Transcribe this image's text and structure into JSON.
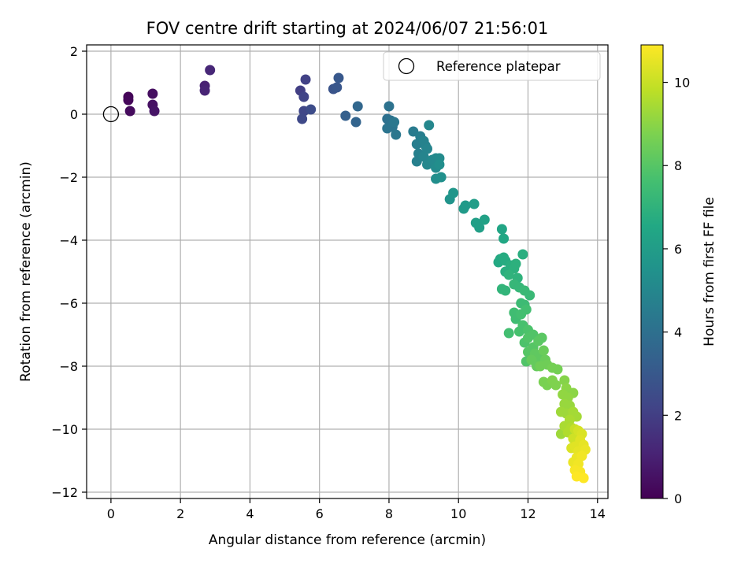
{
  "chart_data": {
    "type": "scatter",
    "title": "FOV centre drift starting at 2024/06/07 21:56:01",
    "xlabel": "Angular distance from reference (arcmin)",
    "ylabel": "Rotation from reference (arcmin)",
    "xlim": [
      -0.7,
      14.3
    ],
    "ylim": [
      -12.2,
      2.2
    ],
    "xticks": [
      0,
      2,
      4,
      6,
      8,
      10,
      12,
      14
    ],
    "yticks": [
      -12,
      -10,
      -8,
      -6,
      -4,
      -2,
      0,
      2
    ],
    "grid": true,
    "legend": {
      "position": "top-right",
      "entries": [
        {
          "label": "Reference platepar",
          "marker": "open-circle"
        }
      ]
    },
    "reference_point": {
      "x": 0,
      "y": 0
    },
    "colorbar": {
      "label": "Hours from first FF file",
      "colormap": "viridis",
      "range": [
        0,
        10.9
      ],
      "ticks": [
        0,
        2,
        4,
        6,
        8,
        10
      ]
    },
    "points": [
      {
        "x": 0.5,
        "y": 0.55,
        "t": 0.1
      },
      {
        "x": 0.5,
        "y": 0.45,
        "t": 0.2
      },
      {
        "x": 0.55,
        "y": 0.1,
        "t": 0.3
      },
      {
        "x": 1.2,
        "y": 0.65,
        "t": 0.4
      },
      {
        "x": 1.2,
        "y": 0.3,
        "t": 0.5
      },
      {
        "x": 1.25,
        "y": 0.1,
        "t": 0.6
      },
      {
        "x": 2.7,
        "y": 0.9,
        "t": 1.0
      },
      {
        "x": 2.7,
        "y": 0.75,
        "t": 1.1
      },
      {
        "x": 2.85,
        "y": 1.4,
        "t": 1.2
      },
      {
        "x": 5.45,
        "y": 0.75,
        "t": 2.0
      },
      {
        "x": 5.6,
        "y": 1.1,
        "t": 2.1
      },
      {
        "x": 5.55,
        "y": 0.55,
        "t": 2.2
      },
      {
        "x": 5.55,
        "y": 0.1,
        "t": 2.3
      },
      {
        "x": 5.5,
        "y": -0.15,
        "t": 2.4
      },
      {
        "x": 5.75,
        "y": 0.15,
        "t": 2.5
      },
      {
        "x": 6.4,
        "y": 0.8,
        "t": 2.8
      },
      {
        "x": 6.5,
        "y": 0.85,
        "t": 2.9
      },
      {
        "x": 6.55,
        "y": 1.15,
        "t": 3.0
      },
      {
        "x": 6.75,
        "y": -0.05,
        "t": 3.3
      },
      {
        "x": 7.05,
        "y": -0.25,
        "t": 3.5
      },
      {
        "x": 7.1,
        "y": 0.25,
        "t": 3.6
      },
      {
        "x": 7.95,
        "y": -0.15,
        "t": 4.0
      },
      {
        "x": 8.0,
        "y": 0.25,
        "t": 4.1
      },
      {
        "x": 8.05,
        "y": -0.2,
        "t": 4.1
      },
      {
        "x": 7.95,
        "y": -0.45,
        "t": 4.2
      },
      {
        "x": 8.1,
        "y": -0.4,
        "t": 4.2
      },
      {
        "x": 8.15,
        "y": -0.25,
        "t": 4.3
      },
      {
        "x": 8.2,
        "y": -0.65,
        "t": 4.3
      },
      {
        "x": 8.7,
        "y": -0.55,
        "t": 4.5
      },
      {
        "x": 8.8,
        "y": -0.95,
        "t": 4.6
      },
      {
        "x": 8.9,
        "y": -0.7,
        "t": 4.6
      },
      {
        "x": 8.85,
        "y": -1.25,
        "t": 4.7
      },
      {
        "x": 8.8,
        "y": -1.5,
        "t": 4.7
      },
      {
        "x": 9.0,
        "y": -0.85,
        "t": 4.8
      },
      {
        "x": 9.05,
        "y": -1.0,
        "t": 4.8
      },
      {
        "x": 9.0,
        "y": -1.35,
        "t": 4.9
      },
      {
        "x": 9.1,
        "y": -1.1,
        "t": 4.9
      },
      {
        "x": 9.15,
        "y": -0.35,
        "t": 5.0
      },
      {
        "x": 9.1,
        "y": -1.6,
        "t": 5.0
      },
      {
        "x": 9.25,
        "y": -1.45,
        "t": 5.1
      },
      {
        "x": 9.35,
        "y": -1.4,
        "t": 5.1
      },
      {
        "x": 9.45,
        "y": -1.4,
        "t": 5.2
      },
      {
        "x": 9.35,
        "y": -1.7,
        "t": 5.2
      },
      {
        "x": 9.45,
        "y": -1.6,
        "t": 5.3
      },
      {
        "x": 9.35,
        "y": -2.05,
        "t": 5.3
      },
      {
        "x": 9.5,
        "y": -2.0,
        "t": 5.4
      },
      {
        "x": 9.75,
        "y": -2.7,
        "t": 5.6
      },
      {
        "x": 9.85,
        "y": -2.5,
        "t": 5.7
      },
      {
        "x": 10.15,
        "y": -3.0,
        "t": 5.9
      },
      {
        "x": 10.2,
        "y": -2.9,
        "t": 5.9
      },
      {
        "x": 10.45,
        "y": -2.85,
        "t": 6.0
      },
      {
        "x": 10.5,
        "y": -3.45,
        "t": 6.1
      },
      {
        "x": 10.6,
        "y": -3.6,
        "t": 6.1
      },
      {
        "x": 10.75,
        "y": -3.35,
        "t": 6.2
      },
      {
        "x": 11.25,
        "y": -3.65,
        "t": 6.4
      },
      {
        "x": 11.3,
        "y": -3.95,
        "t": 6.5
      },
      {
        "x": 11.2,
        "y": -4.6,
        "t": 6.6
      },
      {
        "x": 11.15,
        "y": -4.7,
        "t": 6.6
      },
      {
        "x": 11.3,
        "y": -4.55,
        "t": 6.7
      },
      {
        "x": 11.35,
        "y": -4.65,
        "t": 6.7
      },
      {
        "x": 11.35,
        "y": -5.0,
        "t": 6.8
      },
      {
        "x": 11.5,
        "y": -4.8,
        "t": 6.8
      },
      {
        "x": 11.6,
        "y": -4.9,
        "t": 6.9
      },
      {
        "x": 11.65,
        "y": -4.75,
        "t": 6.9
      },
      {
        "x": 11.45,
        "y": -5.1,
        "t": 7.0
      },
      {
        "x": 11.85,
        "y": -4.45,
        "t": 6.8
      },
      {
        "x": 11.7,
        "y": -5.2,
        "t": 7.0
      },
      {
        "x": 11.25,
        "y": -5.55,
        "t": 7.1
      },
      {
        "x": 11.35,
        "y": -5.6,
        "t": 7.1
      },
      {
        "x": 11.6,
        "y": -5.4,
        "t": 7.2
      },
      {
        "x": 11.75,
        "y": -5.5,
        "t": 7.2
      },
      {
        "x": 11.9,
        "y": -5.6,
        "t": 7.3
      },
      {
        "x": 12.05,
        "y": -5.75,
        "t": 7.3
      },
      {
        "x": 11.8,
        "y": -6.0,
        "t": 7.4
      },
      {
        "x": 11.9,
        "y": -6.05,
        "t": 7.4
      },
      {
        "x": 11.6,
        "y": -6.3,
        "t": 7.5
      },
      {
        "x": 11.65,
        "y": -6.5,
        "t": 7.5
      },
      {
        "x": 11.8,
        "y": -6.35,
        "t": 7.6
      },
      {
        "x": 11.95,
        "y": -6.2,
        "t": 7.6
      },
      {
        "x": 11.45,
        "y": -6.95,
        "t": 7.6
      },
      {
        "x": 11.75,
        "y": -6.9,
        "t": 7.7
      },
      {
        "x": 11.85,
        "y": -6.7,
        "t": 7.7
      },
      {
        "x": 12.0,
        "y": -6.85,
        "t": 7.8
      },
      {
        "x": 11.9,
        "y": -7.25,
        "t": 7.8
      },
      {
        "x": 12.0,
        "y": -7.1,
        "t": 7.9
      },
      {
        "x": 12.15,
        "y": -7.0,
        "t": 7.9
      },
      {
        "x": 12.0,
        "y": -7.55,
        "t": 8.0
      },
      {
        "x": 12.15,
        "y": -7.4,
        "t": 8.0
      },
      {
        "x": 12.3,
        "y": -7.2,
        "t": 8.1
      },
      {
        "x": 12.4,
        "y": -7.1,
        "t": 8.1
      },
      {
        "x": 11.95,
        "y": -7.85,
        "t": 7.9
      },
      {
        "x": 12.2,
        "y": -7.6,
        "t": 8.2
      },
      {
        "x": 12.3,
        "y": -7.7,
        "t": 8.2
      },
      {
        "x": 12.1,
        "y": -7.8,
        "t": 8.3
      },
      {
        "x": 12.25,
        "y": -8.0,
        "t": 8.3
      },
      {
        "x": 12.45,
        "y": -7.5,
        "t": 8.4
      },
      {
        "x": 12.5,
        "y": -7.8,
        "t": 8.4
      },
      {
        "x": 12.35,
        "y": -8.0,
        "t": 8.5
      },
      {
        "x": 12.55,
        "y": -7.95,
        "t": 8.5
      },
      {
        "x": 12.7,
        "y": -8.05,
        "t": 8.6
      },
      {
        "x": 12.85,
        "y": -8.1,
        "t": 8.6
      },
      {
        "x": 12.45,
        "y": -8.5,
        "t": 8.7
      },
      {
        "x": 12.55,
        "y": -8.6,
        "t": 8.7
      },
      {
        "x": 12.7,
        "y": -8.45,
        "t": 8.8
      },
      {
        "x": 12.8,
        "y": -8.6,
        "t": 8.8
      },
      {
        "x": 13.05,
        "y": -8.45,
        "t": 8.9
      },
      {
        "x": 13.1,
        "y": -8.7,
        "t": 9.0
      },
      {
        "x": 13.3,
        "y": -8.85,
        "t": 9.0
      },
      {
        "x": 13.0,
        "y": -8.9,
        "t": 9.1
      },
      {
        "x": 13.15,
        "y": -9.0,
        "t": 9.1
      },
      {
        "x": 13.05,
        "y": -9.2,
        "t": 9.2
      },
      {
        "x": 13.2,
        "y": -9.25,
        "t": 9.2
      },
      {
        "x": 12.95,
        "y": -9.45,
        "t": 9.3
      },
      {
        "x": 13.1,
        "y": -9.5,
        "t": 9.3
      },
      {
        "x": 13.3,
        "y": -9.45,
        "t": 9.4
      },
      {
        "x": 13.4,
        "y": -9.6,
        "t": 9.4
      },
      {
        "x": 13.2,
        "y": -9.7,
        "t": 9.5
      },
      {
        "x": 13.05,
        "y": -9.9,
        "t": 9.5
      },
      {
        "x": 13.25,
        "y": -9.95,
        "t": 9.6
      },
      {
        "x": 12.95,
        "y": -10.15,
        "t": 9.3
      },
      {
        "x": 13.15,
        "y": -10.1,
        "t": 9.6
      },
      {
        "x": 13.35,
        "y": -10.0,
        "t": 10.0
      },
      {
        "x": 13.45,
        "y": -10.05,
        "t": 10.2
      },
      {
        "x": 13.55,
        "y": -10.15,
        "t": 10.3
      },
      {
        "x": 13.3,
        "y": -10.3,
        "t": 10.1
      },
      {
        "x": 13.5,
        "y": -10.35,
        "t": 10.4
      },
      {
        "x": 13.6,
        "y": -10.5,
        "t": 10.5
      },
      {
        "x": 13.35,
        "y": -10.55,
        "t": 10.4
      },
      {
        "x": 13.45,
        "y": -10.7,
        "t": 10.5
      },
      {
        "x": 13.65,
        "y": -10.65,
        "t": 10.6
      },
      {
        "x": 13.25,
        "y": -10.6,
        "t": 10.3
      },
      {
        "x": 13.4,
        "y": -10.9,
        "t": 10.6
      },
      {
        "x": 13.55,
        "y": -10.85,
        "t": 10.7
      },
      {
        "x": 13.3,
        "y": -11.05,
        "t": 10.6
      },
      {
        "x": 13.45,
        "y": -11.1,
        "t": 10.7
      },
      {
        "x": 13.35,
        "y": -11.3,
        "t": 10.8
      },
      {
        "x": 13.5,
        "y": -11.35,
        "t": 10.8
      },
      {
        "x": 13.4,
        "y": -11.5,
        "t": 10.9
      },
      {
        "x": 13.6,
        "y": -11.55,
        "t": 10.9
      }
    ]
  }
}
